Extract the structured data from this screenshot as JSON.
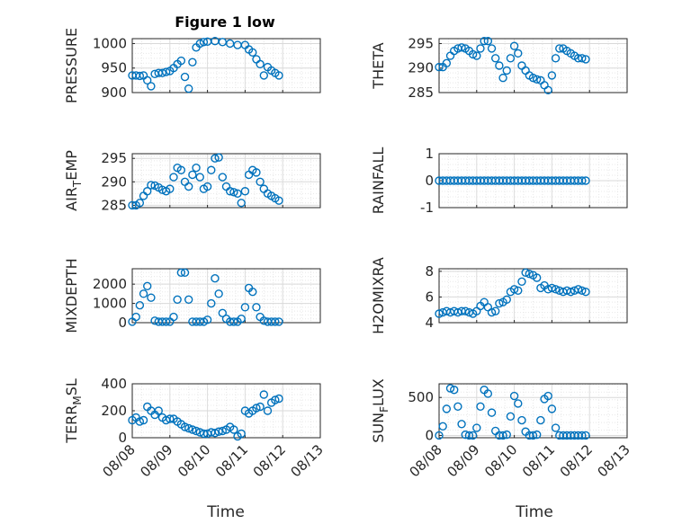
{
  "figure_title": "Figure 1 low",
  "x_axis_label": "Time",
  "x_tick_labels": [
    "08/08",
    "08/09",
    "08/10",
    "08/11",
    "08/12",
    "08/13"
  ],
  "colors": {
    "marker": "#0072BD",
    "axis": "#262626",
    "grid": "#d9d9d9",
    "background": "#ffffff"
  },
  "chart_data": [
    {
      "type": "scatter",
      "ylabel": "PRESSURE",
      "ylim": [
        900,
        1010
      ],
      "yticks": [
        "900",
        "950",
        "1000"
      ],
      "grid": true,
      "x": [
        0,
        0.1,
        0.2,
        0.3,
        0.4,
        0.5,
        0.6,
        0.7,
        0.8,
        0.9,
        1.0,
        1.1,
        1.2,
        1.3,
        1.4,
        1.5,
        1.6,
        1.7,
        1.8,
        1.9,
        2.0,
        2.2,
        2.4,
        2.6,
        2.8,
        3.0,
        3.1,
        3.2,
        3.3,
        3.4,
        3.5,
        3.6,
        3.7,
        3.8,
        3.9
      ],
      "y": [
        935,
        935,
        934,
        935,
        925,
        913,
        938,
        940,
        940,
        942,
        944,
        950,
        958,
        965,
        932,
        908,
        962,
        992,
        1000,
        1003,
        1004,
        1005,
        1003,
        1000,
        997,
        997,
        988,
        982,
        968,
        958,
        935,
        952,
        945,
        940,
        935
      ]
    },
    {
      "type": "scatter",
      "ylabel": "THETA",
      "ylim": [
        285,
        296
      ],
      "yticks": [
        "285",
        "290",
        "295"
      ],
      "grid": true,
      "x": [
        0,
        0.1,
        0.2,
        0.3,
        0.4,
        0.5,
        0.6,
        0.7,
        0.8,
        0.9,
        1.0,
        1.1,
        1.2,
        1.3,
        1.4,
        1.5,
        1.6,
        1.7,
        1.8,
        1.9,
        2.0,
        2.1,
        2.2,
        2.3,
        2.4,
        2.5,
        2.6,
        2.7,
        2.8,
        2.9,
        3.0,
        3.1,
        3.2,
        3.3,
        3.4,
        3.5,
        3.6,
        3.7,
        3.8,
        3.9
      ],
      "y": [
        290.2,
        290.2,
        291,
        292.5,
        293.5,
        294,
        294.2,
        294,
        293.5,
        292.8,
        292.5,
        294,
        295.5,
        295.5,
        294,
        292,
        290.5,
        288,
        289.5,
        292,
        294.5,
        293,
        290.5,
        289.5,
        288.5,
        288,
        287.7,
        287.5,
        286.5,
        285.5,
        288.5,
        292,
        294,
        294,
        293.5,
        293,
        292.5,
        292,
        292,
        291.8
      ]
    },
    {
      "type": "scatter",
      "ylabel": "AIR_TEMP",
      "ylim": [
        284.5,
        296
      ],
      "yticks": [
        "285",
        "290",
        "295"
      ],
      "grid": true,
      "x": [
        0,
        0.1,
        0.2,
        0.3,
        0.4,
        0.5,
        0.6,
        0.7,
        0.8,
        0.9,
        1.0,
        1.1,
        1.2,
        1.3,
        1.4,
        1.5,
        1.6,
        1.7,
        1.8,
        1.9,
        2.0,
        2.1,
        2.2,
        2.3,
        2.4,
        2.5,
        2.6,
        2.7,
        2.8,
        2.9,
        3.0,
        3.1,
        3.2,
        3.3,
        3.4,
        3.5,
        3.6,
        3.7,
        3.8,
        3.9
      ],
      "y": [
        285,
        285,
        285.5,
        287,
        288,
        289.3,
        289.2,
        288.8,
        288.3,
        288,
        288.5,
        291,
        293,
        292.5,
        290,
        289,
        291.5,
        293,
        291,
        288.5,
        289,
        292.5,
        295,
        295.2,
        291,
        289,
        288,
        287.8,
        287.5,
        285.5,
        288,
        291.5,
        292.5,
        292,
        290,
        288.5,
        287.5,
        287,
        286.5,
        286
      ]
    },
    {
      "type": "scatter",
      "ylabel": "RAINFALL",
      "ylim": [
        -1,
        1
      ],
      "yticks": [
        "-1",
        "0",
        "1"
      ],
      "grid": true,
      "x": [
        0,
        0.1,
        0.2,
        0.3,
        0.4,
        0.5,
        0.6,
        0.7,
        0.8,
        0.9,
        1.0,
        1.1,
        1.2,
        1.3,
        1.4,
        1.5,
        1.6,
        1.7,
        1.8,
        1.9,
        2.0,
        2.1,
        2.2,
        2.3,
        2.4,
        2.5,
        2.6,
        2.7,
        2.8,
        2.9,
        3.0,
        3.1,
        3.2,
        3.3,
        3.4,
        3.5,
        3.6,
        3.7,
        3.8,
        3.9
      ],
      "y": [
        0,
        0,
        0,
        0,
        0,
        0,
        0,
        0,
        0,
        0,
        0,
        0,
        0,
        0,
        0,
        0,
        0,
        0,
        0,
        0,
        0,
        0,
        0,
        0,
        0,
        0,
        0,
        0,
        0,
        0,
        0,
        0,
        0,
        0,
        0,
        0,
        0,
        0,
        0,
        0
      ]
    },
    {
      "type": "scatter",
      "ylabel": "MIXDEPTH",
      "ylim": [
        0,
        2800
      ],
      "yticks": [
        "0",
        "1000",
        "2000"
      ],
      "grid": true,
      "x": [
        0,
        0.1,
        0.2,
        0.3,
        0.4,
        0.5,
        0.6,
        0.7,
        0.8,
        0.9,
        1.0,
        1.1,
        1.2,
        1.3,
        1.4,
        1.5,
        1.6,
        1.7,
        1.8,
        1.9,
        2.0,
        2.1,
        2.2,
        2.3,
        2.4,
        2.5,
        2.6,
        2.7,
        2.8,
        2.9,
        3.0,
        3.1,
        3.2,
        3.3,
        3.4,
        3.5,
        3.6,
        3.7,
        3.8,
        3.9
      ],
      "y": [
        50,
        300,
        900,
        1500,
        1900,
        1300,
        100,
        50,
        50,
        50,
        50,
        300,
        1200,
        2600,
        2600,
        1200,
        50,
        50,
        50,
        50,
        150,
        1000,
        2300,
        1500,
        500,
        200,
        50,
        50,
        50,
        200,
        800,
        1800,
        1600,
        800,
        300,
        100,
        50,
        50,
        50,
        50
      ]
    },
    {
      "type": "scatter",
      "ylabel": "H2OMIXRA",
      "ylim": [
        4,
        8.2
      ],
      "yticks": [
        "4",
        "6",
        "8"
      ],
      "grid": true,
      "x": [
        0,
        0.1,
        0.2,
        0.3,
        0.4,
        0.5,
        0.6,
        0.7,
        0.8,
        0.9,
        1.0,
        1.1,
        1.2,
        1.3,
        1.4,
        1.5,
        1.6,
        1.7,
        1.8,
        1.9,
        2.0,
        2.1,
        2.2,
        2.3,
        2.4,
        2.5,
        2.6,
        2.7,
        2.8,
        2.9,
        3.0,
        3.1,
        3.2,
        3.3,
        3.4,
        3.5,
        3.6,
        3.7,
        3.8,
        3.9
      ],
      "y": [
        4.7,
        4.8,
        4.9,
        4.8,
        4.9,
        4.8,
        4.9,
        4.9,
        4.8,
        4.7,
        4.9,
        5.3,
        5.6,
        5.2,
        4.8,
        4.9,
        5.5,
        5.6,
        5.8,
        6.4,
        6.6,
        6.5,
        7.2,
        7.9,
        7.8,
        7.7,
        7.5,
        6.7,
        6.9,
        6.6,
        6.7,
        6.6,
        6.5,
        6.4,
        6.5,
        6.4,
        6.5,
        6.6,
        6.5,
        6.4
      ]
    },
    {
      "type": "scatter",
      "ylabel": "TERR_MSL",
      "ylim": [
        0,
        400
      ],
      "yticks": [
        "0",
        "200",
        "400"
      ],
      "grid": true,
      "x": [
        0,
        0.1,
        0.2,
        0.3,
        0.4,
        0.5,
        0.6,
        0.7,
        0.8,
        0.9,
        1.0,
        1.1,
        1.2,
        1.3,
        1.4,
        1.5,
        1.6,
        1.7,
        1.8,
        1.9,
        2.0,
        2.1,
        2.2,
        2.3,
        2.4,
        2.5,
        2.6,
        2.7,
        2.8,
        2.9,
        3.0,
        3.1,
        3.2,
        3.3,
        3.4,
        3.5,
        3.6,
        3.7,
        3.8,
        3.9
      ],
      "y": [
        130,
        150,
        120,
        130,
        230,
        200,
        170,
        200,
        150,
        130,
        140,
        140,
        120,
        100,
        80,
        70,
        60,
        50,
        40,
        30,
        30,
        40,
        35,
        45,
        50,
        60,
        80,
        60,
        10,
        30,
        200,
        180,
        200,
        220,
        230,
        320,
        200,
        260,
        280,
        290
      ]
    },
    {
      "type": "scatter",
      "ylabel": "SUN_FLUX",
      "ylim": [
        -30,
        680
      ],
      "yticks": [
        "0",
        "500"
      ],
      "grid": true,
      "x": [
        0,
        0.1,
        0.2,
        0.3,
        0.4,
        0.5,
        0.6,
        0.7,
        0.8,
        0.9,
        1.0,
        1.1,
        1.2,
        1.3,
        1.4,
        1.5,
        1.6,
        1.7,
        1.8,
        1.9,
        2.0,
        2.1,
        2.2,
        2.3,
        2.4,
        2.5,
        2.6,
        2.7,
        2.8,
        2.9,
        3.0,
        3.1,
        3.2,
        3.3,
        3.4,
        3.5,
        3.6,
        3.7,
        3.8,
        3.9
      ],
      "y": [
        0,
        120,
        350,
        620,
        600,
        380,
        150,
        10,
        0,
        0,
        100,
        380,
        600,
        550,
        300,
        60,
        0,
        0,
        10,
        250,
        520,
        420,
        200,
        50,
        0,
        0,
        10,
        200,
        480,
        520,
        350,
        100,
        0,
        0,
        0,
        0,
        0,
        0,
        0,
        0
      ]
    }
  ]
}
